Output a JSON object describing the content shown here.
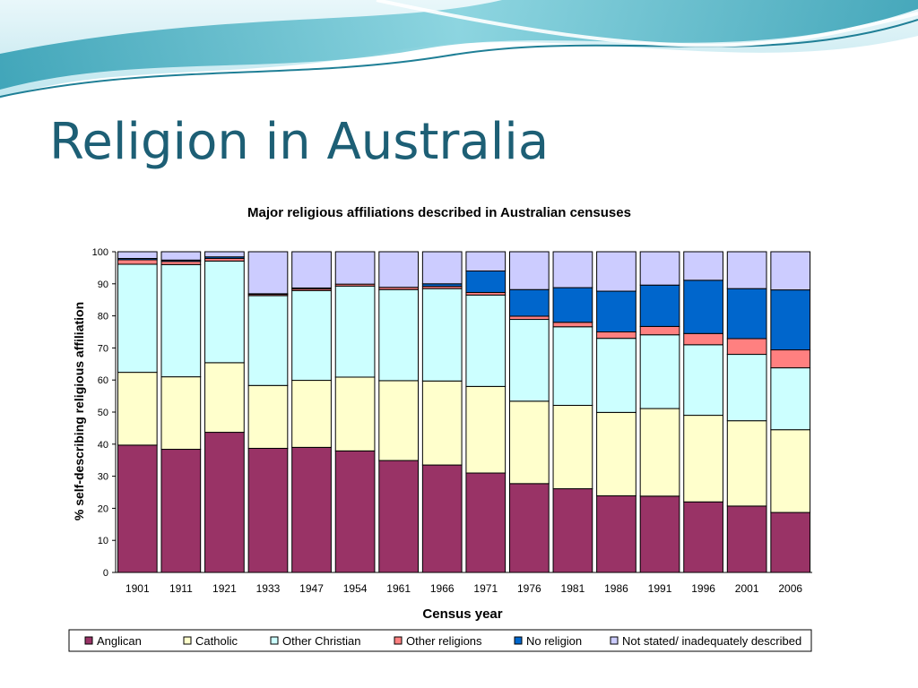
{
  "slide": {
    "title": "Religion in Australia"
  },
  "chart_data": {
    "type": "bar",
    "stacked": true,
    "title": "Major religious affiliations described in Australian censuses",
    "xlabel": "Census year",
    "ylabel": "% self-describing religious affiliation",
    "ylim": [
      0,
      100
    ],
    "yticks": [
      "0",
      "10",
      "20",
      "30",
      "40",
      "50",
      "60",
      "70",
      "80",
      "90",
      "100"
    ],
    "categories": [
      "1901",
      "1911",
      "1921",
      "1933",
      "1947",
      "1954",
      "1961",
      "1966",
      "1971",
      "1976",
      "1981",
      "1986",
      "1991",
      "1996",
      "2001",
      "2006"
    ],
    "series": [
      {
        "name": "Anglican",
        "color": "#993366",
        "values": [
          39.7,
          38.4,
          43.7,
          38.7,
          39.0,
          37.9,
          34.9,
          33.5,
          31.0,
          27.7,
          26.1,
          23.9,
          23.8,
          22.0,
          20.7,
          18.7
        ]
      },
      {
        "name": "Catholic",
        "color": "#ffffcc",
        "values": [
          22.7,
          22.6,
          21.7,
          19.6,
          20.9,
          23.0,
          24.9,
          26.2,
          27.0,
          25.7,
          26.0,
          26.0,
          27.3,
          27.0,
          26.6,
          25.8
        ]
      },
      {
        "name": "Other Christian",
        "color": "#ccffff",
        "values": [
          33.7,
          35.0,
          31.7,
          28.0,
          28.0,
          28.4,
          28.4,
          28.8,
          28.5,
          25.5,
          24.5,
          23.1,
          23.0,
          22.0,
          20.7,
          19.3
        ]
      },
      {
        "name": "Other religions",
        "color": "#ff8080",
        "values": [
          1.4,
          1.0,
          0.8,
          0.4,
          0.5,
          0.6,
          0.7,
          0.7,
          0.8,
          1.0,
          1.4,
          2.0,
          2.6,
          3.5,
          4.9,
          5.6
        ]
      },
      {
        "name": "No religion",
        "color": "#0066cc",
        "values": [
          0.4,
          0.4,
          0.5,
          0.2,
          0.3,
          0.0,
          0.0,
          0.8,
          6.7,
          8.3,
          10.8,
          12.7,
          12.9,
          16.6,
          15.6,
          18.7
        ]
      },
      {
        "name": "Not stated/ inadequately described",
        "color": "#ccccff",
        "values": [
          2.1,
          2.6,
          1.6,
          13.1,
          11.3,
          10.1,
          11.1,
          10.0,
          6.0,
          11.8,
          11.2,
          12.3,
          10.4,
          8.9,
          11.5,
          11.9
        ]
      }
    ],
    "grid": false,
    "legend": "bottom"
  }
}
